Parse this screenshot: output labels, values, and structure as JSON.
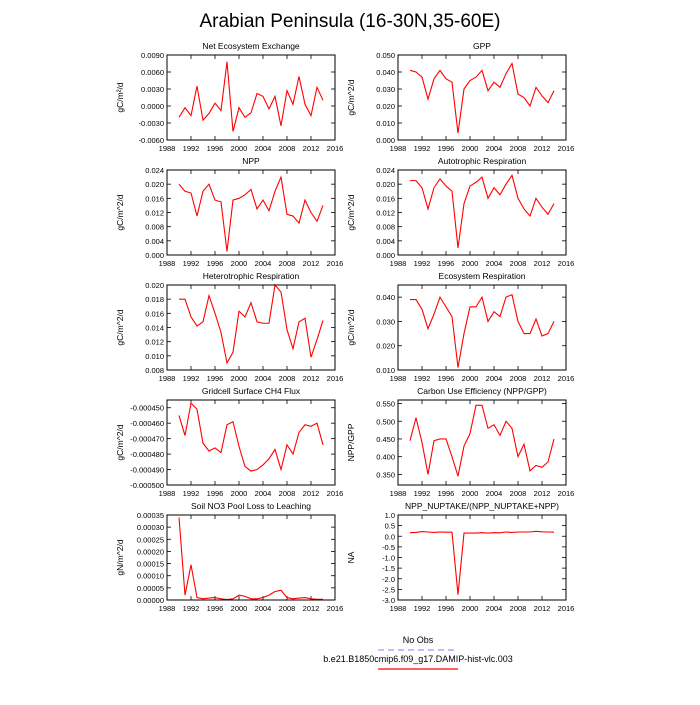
{
  "title": "Arabian Peninsula (16-30N,35-60E)",
  "legend": [
    {
      "name": "No Obs",
      "color": "#9999ff",
      "dashed": true
    },
    {
      "name": "b.e21.B1850cmip6.f09_g17.DAMIP-hist-vlc.003",
      "color": "#ff0000",
      "dashed": false
    }
  ],
  "chart_data": [
    {
      "type": "line",
      "title": "Net Ecosystem Exchange",
      "y_label": "gC/m²/d",
      "color": "#ff0000",
      "x": [
        1990,
        1991,
        1992,
        1993,
        1994,
        1995,
        1996,
        1997,
        1998,
        1999,
        2000,
        2001,
        2002,
        2003,
        2004,
        2005,
        2006,
        2007,
        2008,
        2009,
        2010,
        2011,
        2012,
        2013,
        2014
      ],
      "values": [
        -0.002,
        -0.0003,
        -0.0017,
        0.0035,
        -0.0025,
        -0.0013,
        0.0005,
        -0.0008,
        0.0078,
        -0.0045,
        -0.0003,
        -0.002,
        -0.0012,
        0.0022,
        0.0017,
        -0.0005,
        0.0017,
        -0.0035,
        0.0027,
        0.0003,
        0.0052,
        0.0003,
        -0.0017,
        0.0033,
        0.001
      ],
      "xlim": [
        1988,
        2016
      ],
      "xticks": [
        1988,
        1992,
        1996,
        2000,
        2004,
        2008,
        2012,
        2016
      ],
      "ylim": [
        -0.006,
        0.009
      ],
      "yticks": [
        {
          "value": -0.006,
          "label": "-0.0060"
        },
        {
          "value": -0.003,
          "label": "-0.0030"
        },
        {
          "value": 0,
          "label": "0.0000"
        },
        {
          "value": 0.003,
          "label": "0.0030"
        },
        {
          "value": 0.006,
          "label": "0.0060"
        },
        {
          "value": 0.009,
          "label": "0.0090"
        }
      ]
    },
    {
      "type": "line",
      "title": "GPP",
      "y_label": "gC/m^2/d",
      "color": "#ff0000",
      "x": [
        1990,
        1991,
        1992,
        1993,
        1994,
        1995,
        1996,
        1997,
        1998,
        1999,
        2000,
        2001,
        2002,
        2003,
        2004,
        2005,
        2006,
        2007,
        2008,
        2009,
        2010,
        2011,
        2012,
        2013,
        2014
      ],
      "values": [
        0.041,
        0.04,
        0.037,
        0.024,
        0.036,
        0.041,
        0.036,
        0.034,
        0.004,
        0.03,
        0.035,
        0.037,
        0.041,
        0.029,
        0.034,
        0.031,
        0.039,
        0.045,
        0.027,
        0.025,
        0.02,
        0.031,
        0.026,
        0.022,
        0.029
      ],
      "xlim": [
        1988,
        2016
      ],
      "xticks": [
        1988,
        1992,
        1996,
        2000,
        2004,
        2008,
        2012,
        2016
      ],
      "ylim": [
        0,
        0.05
      ],
      "yticks": [
        {
          "value": 0,
          "label": "0.000"
        },
        {
          "value": 0.01,
          "label": "0.010"
        },
        {
          "value": 0.02,
          "label": "0.020"
        },
        {
          "value": 0.03,
          "label": "0.030"
        },
        {
          "value": 0.04,
          "label": "0.040"
        },
        {
          "value": 0.05,
          "label": "0.050"
        }
      ]
    },
    {
      "type": "line",
      "title": "NPP",
      "y_label": "gC/m^2/d",
      "color": "#ff0000",
      "x": [
        1990,
        1991,
        1992,
        1993,
        1994,
        1995,
        1996,
        1997,
        1998,
        1999,
        2000,
        2001,
        2002,
        2003,
        2004,
        2005,
        2006,
        2007,
        2008,
        2009,
        2010,
        2011,
        2012,
        2013,
        2014
      ],
      "values": [
        0.02,
        0.018,
        0.0175,
        0.011,
        0.018,
        0.02,
        0.0155,
        0.015,
        0.001,
        0.0155,
        0.016,
        0.017,
        0.0185,
        0.013,
        0.0155,
        0.0125,
        0.018,
        0.022,
        0.0115,
        0.011,
        0.009,
        0.0155,
        0.012,
        0.0095,
        0.014
      ],
      "xlim": [
        1988,
        2016
      ],
      "xticks": [
        1988,
        1992,
        1996,
        2000,
        2004,
        2008,
        2012,
        2016
      ],
      "ylim": [
        0,
        0.024
      ],
      "yticks": [
        {
          "value": 0,
          "label": "0.000"
        },
        {
          "value": 0.004,
          "label": "0.004"
        },
        {
          "value": 0.008,
          "label": "0.008"
        },
        {
          "value": 0.012,
          "label": "0.012"
        },
        {
          "value": 0.016,
          "label": "0.016"
        },
        {
          "value": 0.02,
          "label": "0.020"
        },
        {
          "value": 0.024,
          "label": "0.024"
        }
      ]
    },
    {
      "type": "line",
      "title": "Autotrophic Respiration",
      "y_label": "gC/m^2/d",
      "color": "#ff0000",
      "x": [
        1990,
        1991,
        1992,
        1993,
        1994,
        1995,
        1996,
        1997,
        1998,
        1999,
        2000,
        2001,
        2002,
        2003,
        2004,
        2005,
        2006,
        2007,
        2008,
        2009,
        2010,
        2011,
        2012,
        2013,
        2014
      ],
      "values": [
        0.021,
        0.021,
        0.019,
        0.013,
        0.019,
        0.0215,
        0.0195,
        0.018,
        0.002,
        0.0145,
        0.0195,
        0.0205,
        0.022,
        0.016,
        0.019,
        0.017,
        0.02,
        0.0225,
        0.016,
        0.013,
        0.011,
        0.016,
        0.0135,
        0.0115,
        0.0145
      ],
      "xlim": [
        1988,
        2016
      ],
      "xticks": [
        1988,
        1992,
        1996,
        2000,
        2004,
        2008,
        2012,
        2016
      ],
      "ylim": [
        0,
        0.024
      ],
      "yticks": [
        {
          "value": 0,
          "label": "0.000"
        },
        {
          "value": 0.004,
          "label": "0.004"
        },
        {
          "value": 0.008,
          "label": "0.008"
        },
        {
          "value": 0.012,
          "label": "0.012"
        },
        {
          "value": 0.016,
          "label": "0.016"
        },
        {
          "value": 0.02,
          "label": "0.020"
        },
        {
          "value": 0.024,
          "label": "0.024"
        }
      ]
    },
    {
      "type": "line",
      "title": "Heterotrophic Respiration",
      "y_label": "gC/m^2/d",
      "color": "#ff0000",
      "x": [
        1990,
        1991,
        1992,
        1993,
        1994,
        1995,
        1996,
        1997,
        1998,
        1999,
        2000,
        2001,
        2002,
        2003,
        2004,
        2005,
        2006,
        2007,
        2008,
        2009,
        2010,
        2011,
        2012,
        2013,
        2014
      ],
      "values": [
        0.018,
        0.018,
        0.0155,
        0.0142,
        0.0148,
        0.0185,
        0.016,
        0.0133,
        0.009,
        0.0105,
        0.0163,
        0.0155,
        0.0175,
        0.0148,
        0.0146,
        0.0146,
        0.02,
        0.019,
        0.0137,
        0.011,
        0.0148,
        0.0153,
        0.0098,
        0.0123,
        0.015
      ],
      "xlim": [
        1988,
        2016
      ],
      "xticks": [
        1988,
        1992,
        1996,
        2000,
        2004,
        2008,
        2012,
        2016
      ],
      "ylim": [
        0.008,
        0.02
      ],
      "yticks": [
        {
          "value": 0.008,
          "label": "0.008"
        },
        {
          "value": 0.01,
          "label": "0.010"
        },
        {
          "value": 0.012,
          "label": "0.012"
        },
        {
          "value": 0.014,
          "label": "0.014"
        },
        {
          "value": 0.016,
          "label": "0.016"
        },
        {
          "value": 0.018,
          "label": "0.018"
        },
        {
          "value": 0.02,
          "label": "0.020"
        }
      ]
    },
    {
      "type": "line",
      "title": "Ecosystem Respiration",
      "y_label": "gC/m^2/d",
      "color": "#ff0000",
      "x": [
        1990,
        1991,
        1992,
        1993,
        1994,
        1995,
        1996,
        1997,
        1998,
        1999,
        2000,
        2001,
        2002,
        2003,
        2004,
        2005,
        2006,
        2007,
        2008,
        2009,
        2010,
        2011,
        2012,
        2013,
        2014
      ],
      "values": [
        0.039,
        0.039,
        0.035,
        0.027,
        0.033,
        0.04,
        0.036,
        0.032,
        0.011,
        0.025,
        0.036,
        0.036,
        0.04,
        0.03,
        0.034,
        0.032,
        0.04,
        0.041,
        0.03,
        0.025,
        0.025,
        0.031,
        0.024,
        0.025,
        0.03
      ],
      "xlim": [
        1988,
        2016
      ],
      "xticks": [
        1988,
        1992,
        1996,
        2000,
        2004,
        2008,
        2012,
        2016
      ],
      "ylim": [
        0.01,
        0.045
      ],
      "yticks": [
        {
          "value": 0.01,
          "label": "0.010"
        },
        {
          "value": 0.02,
          "label": "0.020"
        },
        {
          "value": 0.03,
          "label": "0.030"
        },
        {
          "value": 0.04,
          "label": "0.040"
        }
      ]
    },
    {
      "type": "line",
      "title": "Gridcell Surface CH4 Flux",
      "y_label": "gC/m^2/d",
      "color": "#ff0000",
      "x": [
        1990,
        1991,
        1992,
        1993,
        1994,
        1995,
        1996,
        1997,
        1998,
        1999,
        2000,
        2001,
        2002,
        2003,
        2004,
        2005,
        2006,
        2007,
        2008,
        2009,
        2010,
        2011,
        2012,
        2013,
        2014
      ],
      "values": [
        -0.000455,
        -0.000468,
        -0.000447,
        -0.000451,
        -0.000473,
        -0.000478,
        -0.000476,
        -0.000479,
        -0.000461,
        -0.000459,
        -0.000475,
        -0.000488,
        -0.000491,
        -0.00049,
        -0.000487,
        -0.000483,
        -0.000477,
        -0.00049,
        -0.000474,
        -0.00048,
        -0.000466,
        -0.000461,
        -0.000462,
        -0.00046,
        -0.000474
      ],
      "xlim": [
        1988,
        2016
      ],
      "xticks": [
        1988,
        1992,
        1996,
        2000,
        2004,
        2008,
        2012,
        2016
      ],
      "ylim": [
        -0.0005,
        -0.000445
      ],
      "yticks": [
        {
          "value": -0.0005,
          "label": "-0.000500"
        },
        {
          "value": -0.00049,
          "label": "-0.000490"
        },
        {
          "value": -0.00048,
          "label": "-0.000480"
        },
        {
          "value": -0.00047,
          "label": "-0.000470"
        },
        {
          "value": -0.00046,
          "label": "-0.000460"
        },
        {
          "value": -0.00045,
          "label": "-0.000450"
        }
      ]
    },
    {
      "type": "line",
      "title": "Carbon Use Efficiency (NPP/GPP)",
      "y_label": "NPP/GPP",
      "color": "#ff0000",
      "x": [
        1990,
        1991,
        1992,
        1993,
        1994,
        1995,
        1996,
        1997,
        1998,
        1999,
        2000,
        2001,
        2002,
        2003,
        2004,
        2005,
        2006,
        2007,
        2008,
        2009,
        2010,
        2011,
        2012,
        2013,
        2014
      ],
      "values": [
        0.445,
        0.51,
        0.44,
        0.35,
        0.445,
        0.45,
        0.45,
        0.4,
        0.345,
        0.43,
        0.465,
        0.545,
        0.545,
        0.48,
        0.49,
        0.46,
        0.5,
        0.48,
        0.4,
        0.435,
        0.36,
        0.375,
        0.37,
        0.385,
        0.45
      ],
      "xlim": [
        1988,
        2016
      ],
      "xticks": [
        1988,
        1992,
        1996,
        2000,
        2004,
        2008,
        2012,
        2016
      ],
      "ylim": [
        0.32,
        0.56
      ],
      "yticks": [
        {
          "value": 0.35,
          "label": "0.350"
        },
        {
          "value": 0.4,
          "label": "0.400"
        },
        {
          "value": 0.45,
          "label": "0.450"
        },
        {
          "value": 0.5,
          "label": "0.500"
        },
        {
          "value": 0.55,
          "label": "0.550"
        }
      ]
    },
    {
      "type": "line",
      "title": "Soil NO3 Pool Loss to Leaching",
      "y_label": "gN/m^2/d",
      "color": "#ff0000",
      "x": [
        1990,
        1991,
        1992,
        1993,
        1994,
        1995,
        1996,
        1997,
        1998,
        1999,
        2000,
        2001,
        2002,
        2003,
        2004,
        2005,
        2006,
        2007,
        2008,
        2009,
        2010,
        2011,
        2012,
        2013,
        2014
      ],
      "values": [
        0.00034,
        2e-05,
        0.000145,
        1e-05,
        5e-06,
        8e-06,
        1e-05,
        5e-06,
        2e-06,
        5e-06,
        2e-05,
        1.5e-05,
        5e-06,
        5e-06,
        1e-05,
        2e-05,
        3.5e-05,
        4e-05,
        1e-05,
        5e-06,
        8e-06,
        1e-05,
        5e-06,
        3e-06,
        3e-06
      ],
      "xlim": [
        1988,
        2016
      ],
      "xticks": [
        1988,
        1992,
        1996,
        2000,
        2004,
        2008,
        2012,
        2016
      ],
      "ylim": [
        0,
        0.00035
      ],
      "yticks": [
        {
          "value": 0,
          "label": "0.00000"
        },
        {
          "value": 5e-05,
          "label": "0.00005"
        },
        {
          "value": 0.0001,
          "label": "0.00010"
        },
        {
          "value": 0.00015,
          "label": "0.00015"
        },
        {
          "value": 0.0002,
          "label": "0.00020"
        },
        {
          "value": 0.00025,
          "label": "0.00025"
        },
        {
          "value": 0.0003,
          "label": "0.00030"
        },
        {
          "value": 0.00035,
          "label": "0.00035"
        }
      ]
    },
    {
      "type": "line",
      "title": "NPP_NUPTAKE/(NPP_NUPTAKE+NPP)",
      "y_label": "NA",
      "color": "#ff0000",
      "x": [
        1990,
        1991,
        1992,
        1993,
        1994,
        1995,
        1996,
        1997,
        1998,
        1999,
        2000,
        2001,
        2002,
        2003,
        2004,
        2005,
        2006,
        2007,
        2008,
        2009,
        2010,
        2011,
        2012,
        2013,
        2014
      ],
      "values": [
        0.17,
        0.18,
        0.22,
        0.2,
        0.18,
        0.2,
        0.19,
        0.19,
        -2.75,
        0.15,
        0.15,
        0.15,
        0.17,
        0.15,
        0.17,
        0.16,
        0.2,
        0.18,
        0.2,
        0.2,
        0.2,
        0.23,
        0.21,
        0.2,
        0.19
      ],
      "xlim": [
        1988,
        2016
      ],
      "xticks": [
        1988,
        1992,
        1996,
        2000,
        2004,
        2008,
        2012,
        2016
      ],
      "ylim": [
        -3,
        1
      ],
      "yticks": [
        {
          "value": -3,
          "label": "-3.0"
        },
        {
          "value": -2.5,
          "label": "-2.5"
        },
        {
          "value": -2,
          "label": "-2.0"
        },
        {
          "value": -1.5,
          "label": "-1.5"
        },
        {
          "value": -1,
          "label": "-1.0"
        },
        {
          "value": -0.5,
          "label": "-0.5"
        },
        {
          "value": 0,
          "label": "0.0"
        },
        {
          "value": 0.5,
          "label": "0.5"
        },
        {
          "value": 1,
          "label": "1.0"
        }
      ]
    }
  ]
}
